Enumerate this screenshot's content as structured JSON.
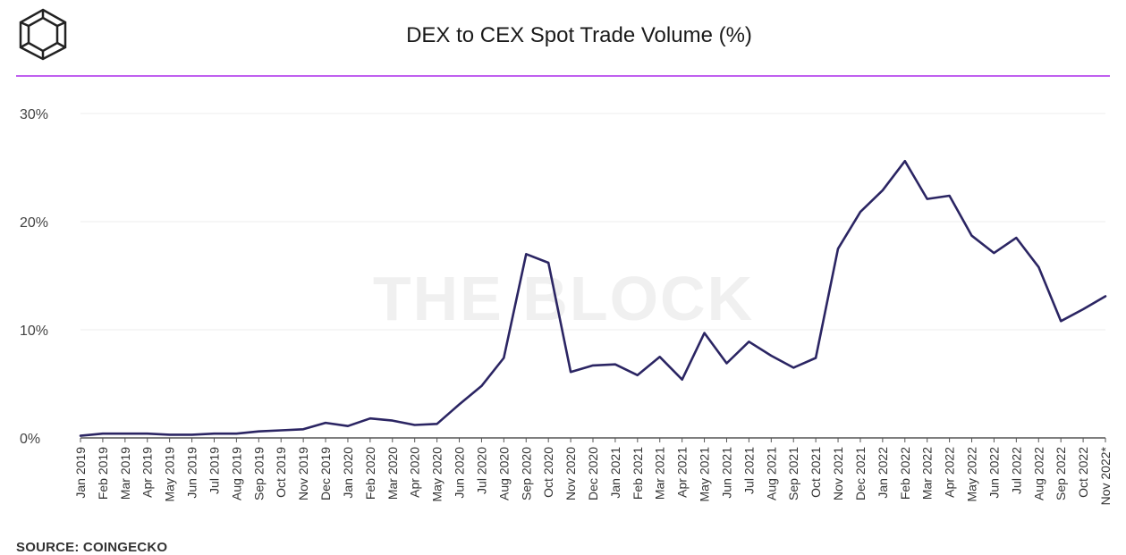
{
  "header": {
    "title": "DEX to CEX Spot Trade Volume (%)",
    "logo_icon": "the-block-cube-logo",
    "accent_color": "#c060f0"
  },
  "watermark": "THE BLOCK",
  "source": "SOURCE: COINGECKO",
  "chart_data": {
    "type": "line",
    "title": "DEX to CEX Spot Trade Volume (%)",
    "xlabel": "",
    "ylabel": "",
    "ylim": [
      0,
      30
    ],
    "yticks": [
      0,
      10,
      20,
      30
    ],
    "ytick_labels": [
      "0%",
      "10%",
      "20%",
      "30%"
    ],
    "grid": true,
    "line_color": "#2b2563",
    "categories": [
      "Jan 2019",
      "Feb 2019",
      "Mar 2019",
      "Apr 2019",
      "May 2019",
      "Jun 2019",
      "Jul 2019",
      "Aug 2019",
      "Sep 2019",
      "Oct 2019",
      "Nov 2019",
      "Dec 2019",
      "Jan 2020",
      "Feb 2020",
      "Mar 2020",
      "Apr 2020",
      "May 2020",
      "Jun 2020",
      "Jul 2020",
      "Aug 2020",
      "Sep 2020",
      "Oct 2020",
      "Nov 2020",
      "Dec 2020",
      "Jan 2021",
      "Feb 2021",
      "Mar 2021",
      "Apr 2021",
      "May 2021",
      "Jun 2021",
      "Jul 2021",
      "Aug 2021",
      "Sep 2021",
      "Oct 2021",
      "Nov 2021",
      "Dec 2021",
      "Jan 2022",
      "Feb 2022",
      "Mar 2022",
      "Apr 2022",
      "May 2022",
      "Jun 2022",
      "Jul 2022",
      "Aug 2022",
      "Sep 2022",
      "Oct 2022",
      "Nov 2022*"
    ],
    "series": [
      {
        "values": [
          0.2,
          0.4,
          0.4,
          0.4,
          0.3,
          0.3,
          0.4,
          0.4,
          0.6,
          0.7,
          0.8,
          1.4,
          1.1,
          1.8,
          1.6,
          1.2,
          1.3,
          3.1,
          4.8,
          7.4,
          17.0,
          16.2,
          6.1,
          6.7,
          6.8,
          5.8,
          7.5,
          5.4,
          9.7,
          6.9,
          8.9,
          7.6,
          6.5,
          7.4,
          17.5,
          20.9,
          22.9,
          25.6,
          22.1,
          22.4,
          18.7,
          17.1,
          18.5,
          15.8,
          10.8,
          11.9,
          13.1
        ]
      }
    ]
  }
}
